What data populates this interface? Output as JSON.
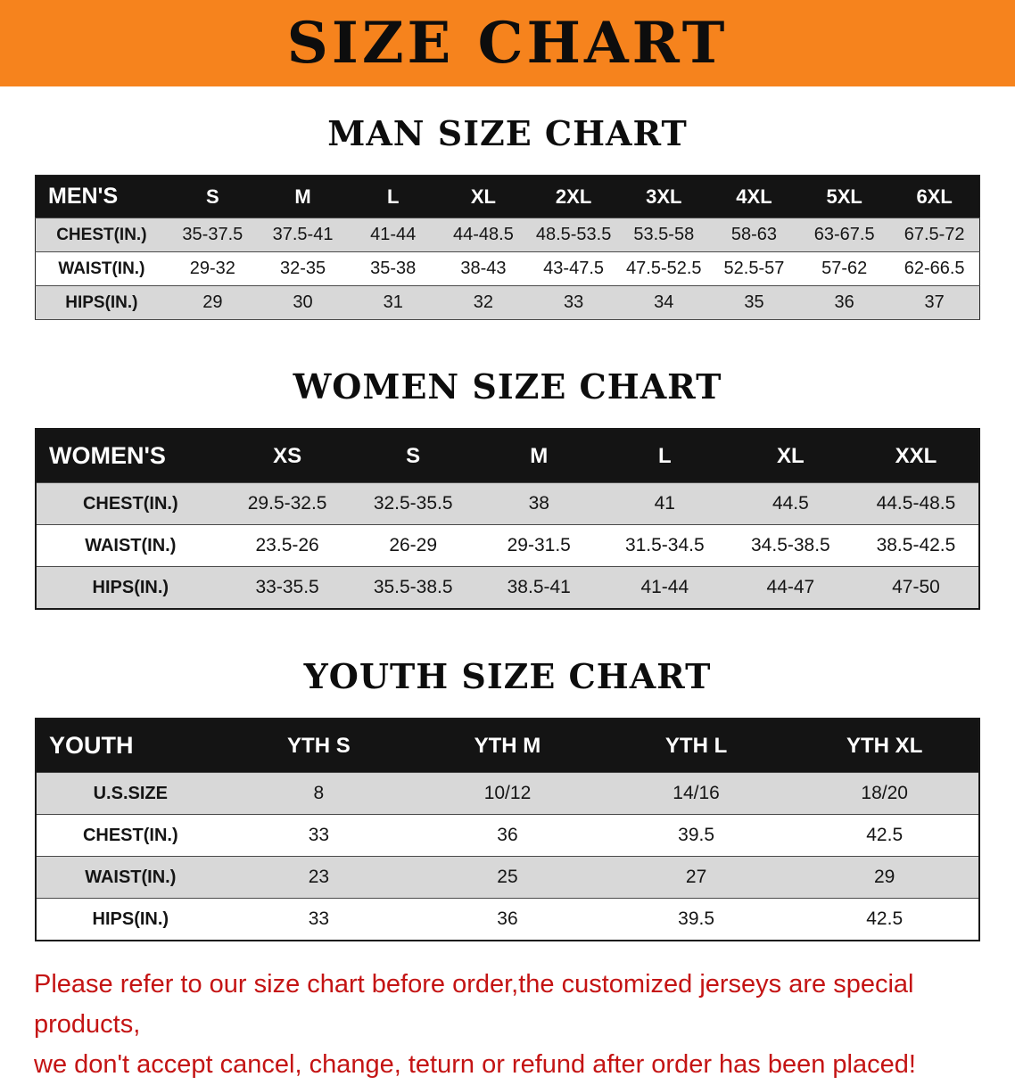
{
  "banner": {
    "title": "SIZE CHART"
  },
  "colors": {
    "banner_bg": "#f6831d",
    "table_header_bg": "#141414",
    "row_alt": "#d8d8d8",
    "disclaimer_text": "#c41414"
  },
  "chart_data": [
    {
      "type": "table",
      "title": "MAN SIZE CHART",
      "columns": [
        "MEN'S",
        "S",
        "M",
        "L",
        "XL",
        "2XL",
        "3XL",
        "4XL",
        "5XL",
        "6XL"
      ],
      "rows": [
        [
          "CHEST(IN.)",
          "35-37.5",
          "37.5-41",
          "41-44",
          "44-48.5",
          "48.5-53.5",
          "53.5-58",
          "58-63",
          "63-67.5",
          "67.5-72"
        ],
        [
          "WAIST(IN.)",
          "29-32",
          "32-35",
          "35-38",
          "38-43",
          "43-47.5",
          "47.5-52.5",
          "52.5-57",
          "57-62",
          "62-66.5"
        ],
        [
          "HIPS(IN.)",
          "29",
          "30",
          "31",
          "32",
          "33",
          "34",
          "35",
          "36",
          "37"
        ]
      ]
    },
    {
      "type": "table",
      "title": "WOMEN SIZE CHART",
      "columns": [
        "WOMEN'S",
        "XS",
        "S",
        "M",
        "L",
        "XL",
        "XXL"
      ],
      "rows": [
        [
          "CHEST(IN.)",
          "29.5-32.5",
          "32.5-35.5",
          "38",
          "41",
          "44.5",
          "44.5-48.5"
        ],
        [
          "WAIST(IN.)",
          "23.5-26",
          "26-29",
          "29-31.5",
          "31.5-34.5",
          "34.5-38.5",
          "38.5-42.5"
        ],
        [
          "HIPS(IN.)",
          "33-35.5",
          "35.5-38.5",
          "38.5-41",
          "41-44",
          "44-47",
          "47-50"
        ]
      ]
    },
    {
      "type": "table",
      "title": "YOUTH SIZE CHART",
      "columns": [
        "YOUTH",
        "YTH S",
        "YTH M",
        "YTH L",
        "YTH XL"
      ],
      "rows": [
        [
          "U.S.SIZE",
          "8",
          "10/12",
          "14/16",
          "18/20"
        ],
        [
          "CHEST(IN.)",
          "33",
          "36",
          "39.5",
          "42.5"
        ],
        [
          "WAIST(IN.)",
          "23",
          "25",
          "27",
          "29"
        ],
        [
          "HIPS(IN.)",
          "33",
          "36",
          "39.5",
          "42.5"
        ]
      ]
    }
  ],
  "footer": {
    "lines": [
      "Please refer to our size chart before order,the customized jerseys are special products,",
      "we don't accept cancel, change, teturn or refund after order has been placed!"
    ]
  }
}
